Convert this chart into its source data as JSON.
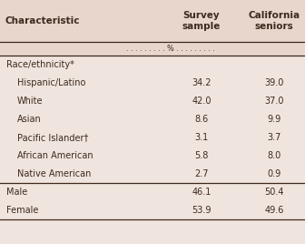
{
  "col_headers": [
    "Characteristic",
    "Survey\nsample",
    "California\nseniors"
  ],
  "percent_row": ". . . . . . . . . % . . . . . . . . .",
  "rows": [
    {
      "label": "Race/ethnicity*",
      "indent": false,
      "is_subheader": true,
      "survey": null,
      "ca": null
    },
    {
      "label": "Hispanic/Latino",
      "indent": true,
      "is_subheader": false,
      "survey": "34.2",
      "ca": "39.0"
    },
    {
      "label": "White",
      "indent": true,
      "is_subheader": false,
      "survey": "42.0",
      "ca": "37.0"
    },
    {
      "label": "Asian",
      "indent": true,
      "is_subheader": false,
      "survey": "8.6",
      "ca": "9.9"
    },
    {
      "label": "Pacific Islander†",
      "indent": true,
      "is_subheader": false,
      "survey": "3.1",
      "ca": "3.7"
    },
    {
      "label": "African American",
      "indent": true,
      "is_subheader": false,
      "survey": "5.8",
      "ca": "8.0"
    },
    {
      "label": "Native American",
      "indent": true,
      "is_subheader": false,
      "survey": "2.7",
      "ca": "0.9"
    },
    {
      "label": "Male",
      "indent": false,
      "is_subheader": false,
      "survey": "46.1",
      "ca": "50.4"
    },
    {
      "label": "Female",
      "indent": false,
      "is_subheader": false,
      "survey": "53.9",
      "ca": "49.6"
    }
  ],
  "header_bg": "#e8d5cc",
  "body_bg": "#f0e4de",
  "divider_before_rows": [
    7
  ],
  "text_color": "#3c2a1e",
  "font_size": 7.0,
  "header_font_size": 7.5,
  "fig_width": 3.36,
  "fig_height": 2.68,
  "dpi": 100
}
